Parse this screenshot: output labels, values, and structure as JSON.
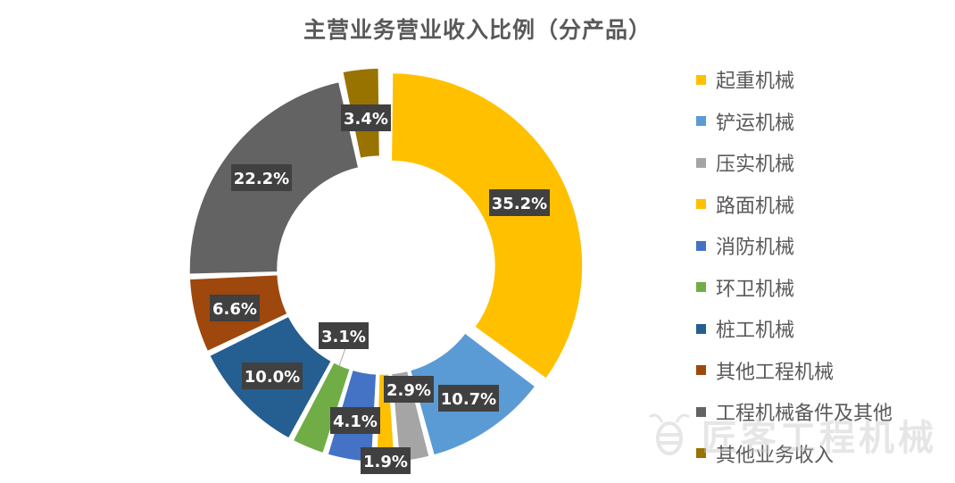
{
  "chart_data": {
    "type": "pie",
    "donut": true,
    "title": "主营业务营业收入比例（分产品）",
    "legend_position": "right",
    "series": [
      {
        "name": "起重机械",
        "value": 35.2,
        "label": "35.2%",
        "color": "#FFC000"
      },
      {
        "name": "铲运机械",
        "value": 10.7,
        "label": "10.7%",
        "color": "#5B9BD5"
      },
      {
        "name": "压实机械",
        "value": 2.9,
        "label": "2.9%",
        "color": "#A5A5A5"
      },
      {
        "name": "路面机械",
        "value": 1.9,
        "label": "1.9%",
        "color": "#FFC000"
      },
      {
        "name": "消防机械",
        "value": 4.1,
        "label": "4.1%",
        "color": "#4472C4"
      },
      {
        "name": "环卫机械",
        "value": 3.1,
        "label": "3.1%",
        "color": "#70AD47"
      },
      {
        "name": "桩工机械",
        "value": 10.0,
        "label": "10.0%",
        "color": "#255E91"
      },
      {
        "name": "其他工程机械",
        "value": 6.6,
        "label": "6.6%",
        "color": "#9E480E"
      },
      {
        "name": "工程机械备件及其他",
        "value": 22.2,
        "label": "22.2%",
        "color": "#636363"
      },
      {
        "name": "其他业务收入",
        "value": 3.4,
        "label": "3.4%",
        "color": "#997300"
      }
    ]
  },
  "watermark": {
    "text": "匠客工程机械",
    "icon": "bee-logo-icon"
  }
}
